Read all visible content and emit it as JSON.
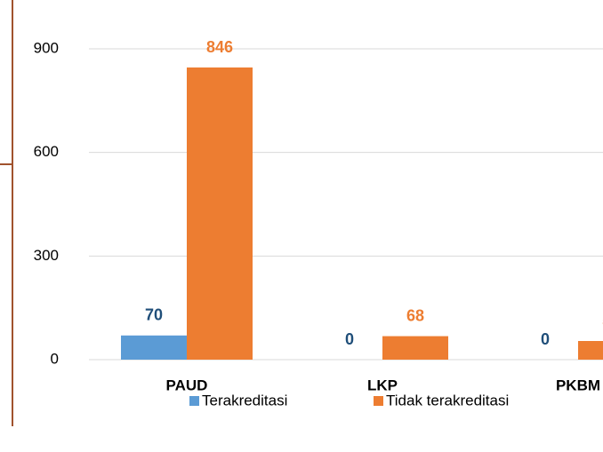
{
  "chart_data": {
    "type": "bar",
    "categories": [
      "PAUD",
      "LKP",
      "PKBM"
    ],
    "series": [
      {
        "name": "Terakreditasi",
        "color": "#5b9bd5",
        "label_color": "#1f4e79",
        "values": [
          70,
          0,
          0
        ]
      },
      {
        "name": "Tidak terakreditasi",
        "color": "#ed7d31",
        "label_color": "#ed7d31",
        "values": [
          846,
          68,
          54
        ]
      }
    ],
    "ylim": [
      0,
      900
    ],
    "yticks": [
      0,
      300,
      600,
      900
    ],
    "grid": true,
    "legend": "bottom"
  }
}
